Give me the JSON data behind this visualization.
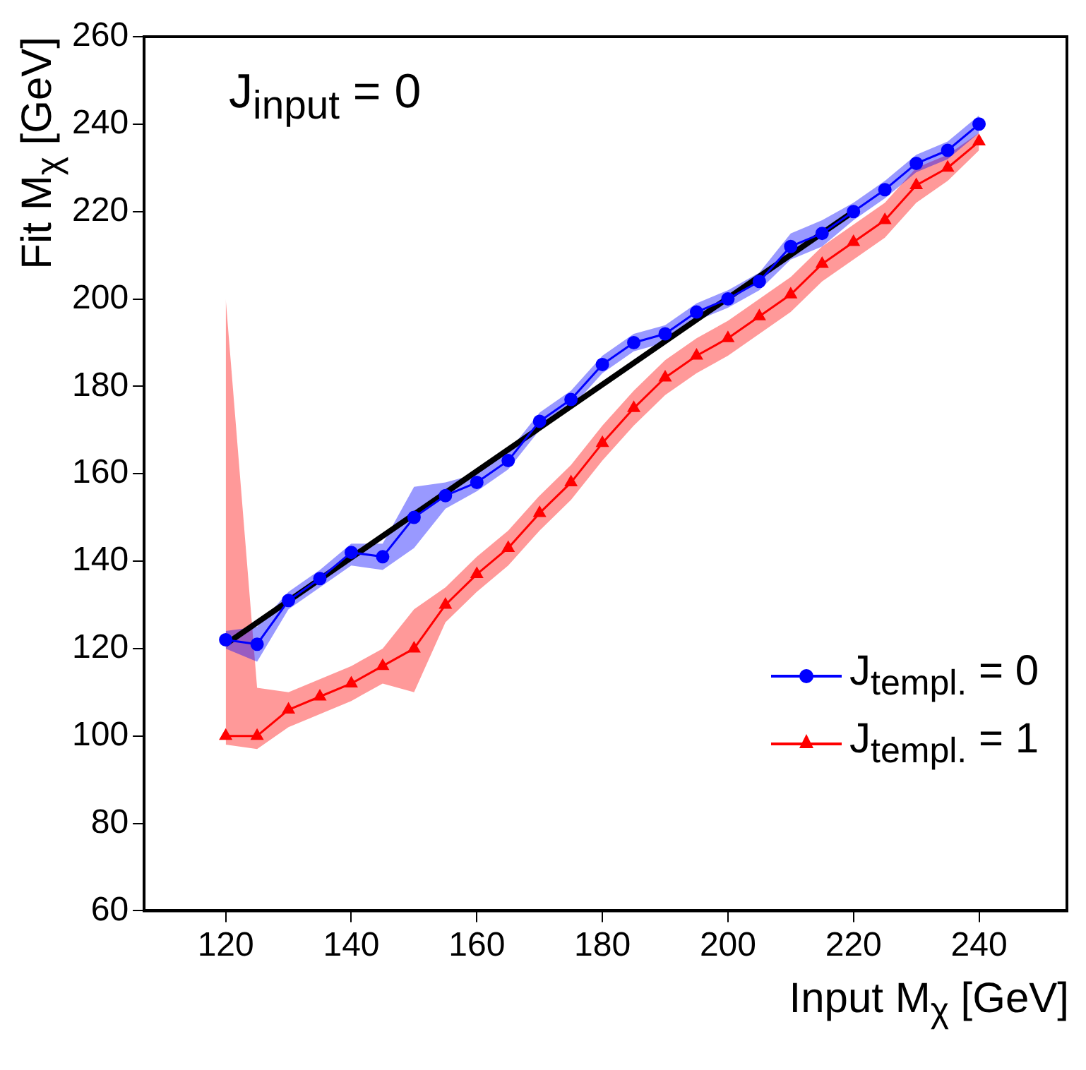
{
  "chart_data": {
    "type": "line",
    "xlabel": "Input M$_{χ}$ [GeV]",
    "ylabel": "Fit M$_{χ}$ [GeV]",
    "annotations": [
      "J$_{input}$ = 0"
    ],
    "x": [
      120,
      125,
      130,
      135,
      140,
      145,
      150,
      155,
      160,
      165,
      170,
      175,
      180,
      185,
      190,
      195,
      200,
      205,
      210,
      215,
      220,
      225,
      230,
      235,
      240
    ],
    "series": [
      {
        "name": "J$_{templ.}$ = 0",
        "color": "#0000ff",
        "marker": "circle",
        "values": [
          122,
          121,
          131,
          136,
          142,
          141,
          150,
          155,
          158,
          163,
          172,
          177,
          185,
          190,
          192,
          197,
          200,
          204,
          212,
          215,
          220,
          225,
          231,
          234,
          240
        ],
        "lower": [
          120,
          117,
          129,
          134,
          139,
          138,
          143,
          152,
          156,
          161,
          170,
          175,
          183,
          188,
          190,
          195,
          198,
          202,
          209,
          212,
          218,
          223,
          229,
          232,
          238
        ],
        "upper": [
          124,
          125,
          133,
          138,
          144,
          144,
          157,
          158,
          160,
          165,
          174,
          179,
          187,
          192,
          194,
          199,
          202,
          206,
          215,
          218,
          222,
          227,
          233,
          236,
          242
        ]
      },
      {
        "name": "J$_{templ.}$ = 1",
        "color": "#ff0000",
        "marker": "triangle",
        "values": [
          100,
          100,
          106,
          109,
          112,
          116,
          120,
          130,
          137,
          143,
          151,
          158,
          167,
          175,
          182,
          187,
          191,
          196,
          201,
          208,
          213,
          218,
          226,
          230,
          236
        ],
        "lower": [
          98,
          97,
          102,
          105,
          108,
          112,
          110,
          126,
          133,
          139,
          147,
          154,
          163,
          171,
          178,
          183,
          187,
          192,
          197,
          204,
          209,
          214,
          222,
          227,
          234
        ],
        "upper": [
          200,
          111,
          110,
          113,
          116,
          120,
          129,
          134,
          141,
          147,
          155,
          162,
          171,
          179,
          186,
          191,
          195,
          200,
          205,
          212,
          217,
          222,
          230,
          233,
          238
        ]
      },
      {
        "type": "line",
        "color": "#000000",
        "marker": "none",
        "x": [
          120,
          220
        ],
        "values": [
          121,
          220
        ]
      }
    ],
    "xlim": [
      107,
      254
    ],
    "xticks": [
      120,
      140,
      160,
      180,
      200,
      220,
      240
    ],
    "ylim": [
      60,
      260
    ],
    "yticks": [
      60,
      80,
      100,
      120,
      140,
      160,
      180,
      200,
      220,
      240,
      260
    ],
    "grid": false,
    "legend": "bottom right"
  }
}
